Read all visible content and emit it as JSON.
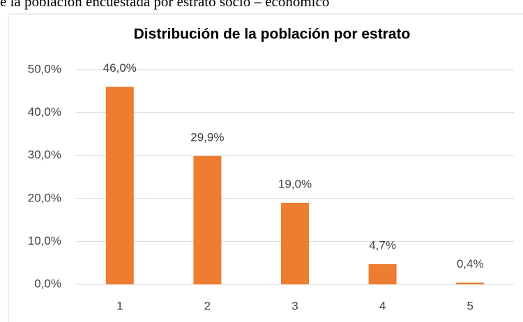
{
  "caption": "e la población encuestada por estrato socio – económico",
  "chart_data": {
    "type": "bar",
    "title": "Distribución de la población por estrato",
    "categories": [
      "1",
      "2",
      "3",
      "4",
      "5"
    ],
    "values": [
      46.0,
      29.9,
      19.0,
      4.7,
      0.4
    ],
    "value_labels": [
      "46,0%",
      "29,9%",
      "19,0%",
      "4,7%",
      "0,4%"
    ],
    "color": "#ed7d31",
    "ylim": [
      0,
      50
    ],
    "yticks": [
      {
        "value": 0,
        "label": "0,0%"
      },
      {
        "value": 10,
        "label": "10,0%"
      },
      {
        "value": 20,
        "label": "20,0%"
      },
      {
        "value": 30,
        "label": "30,0%"
      },
      {
        "value": 40,
        "label": "40,0%"
      },
      {
        "value": 50,
        "label": "50,0%"
      }
    ],
    "grid": true
  }
}
